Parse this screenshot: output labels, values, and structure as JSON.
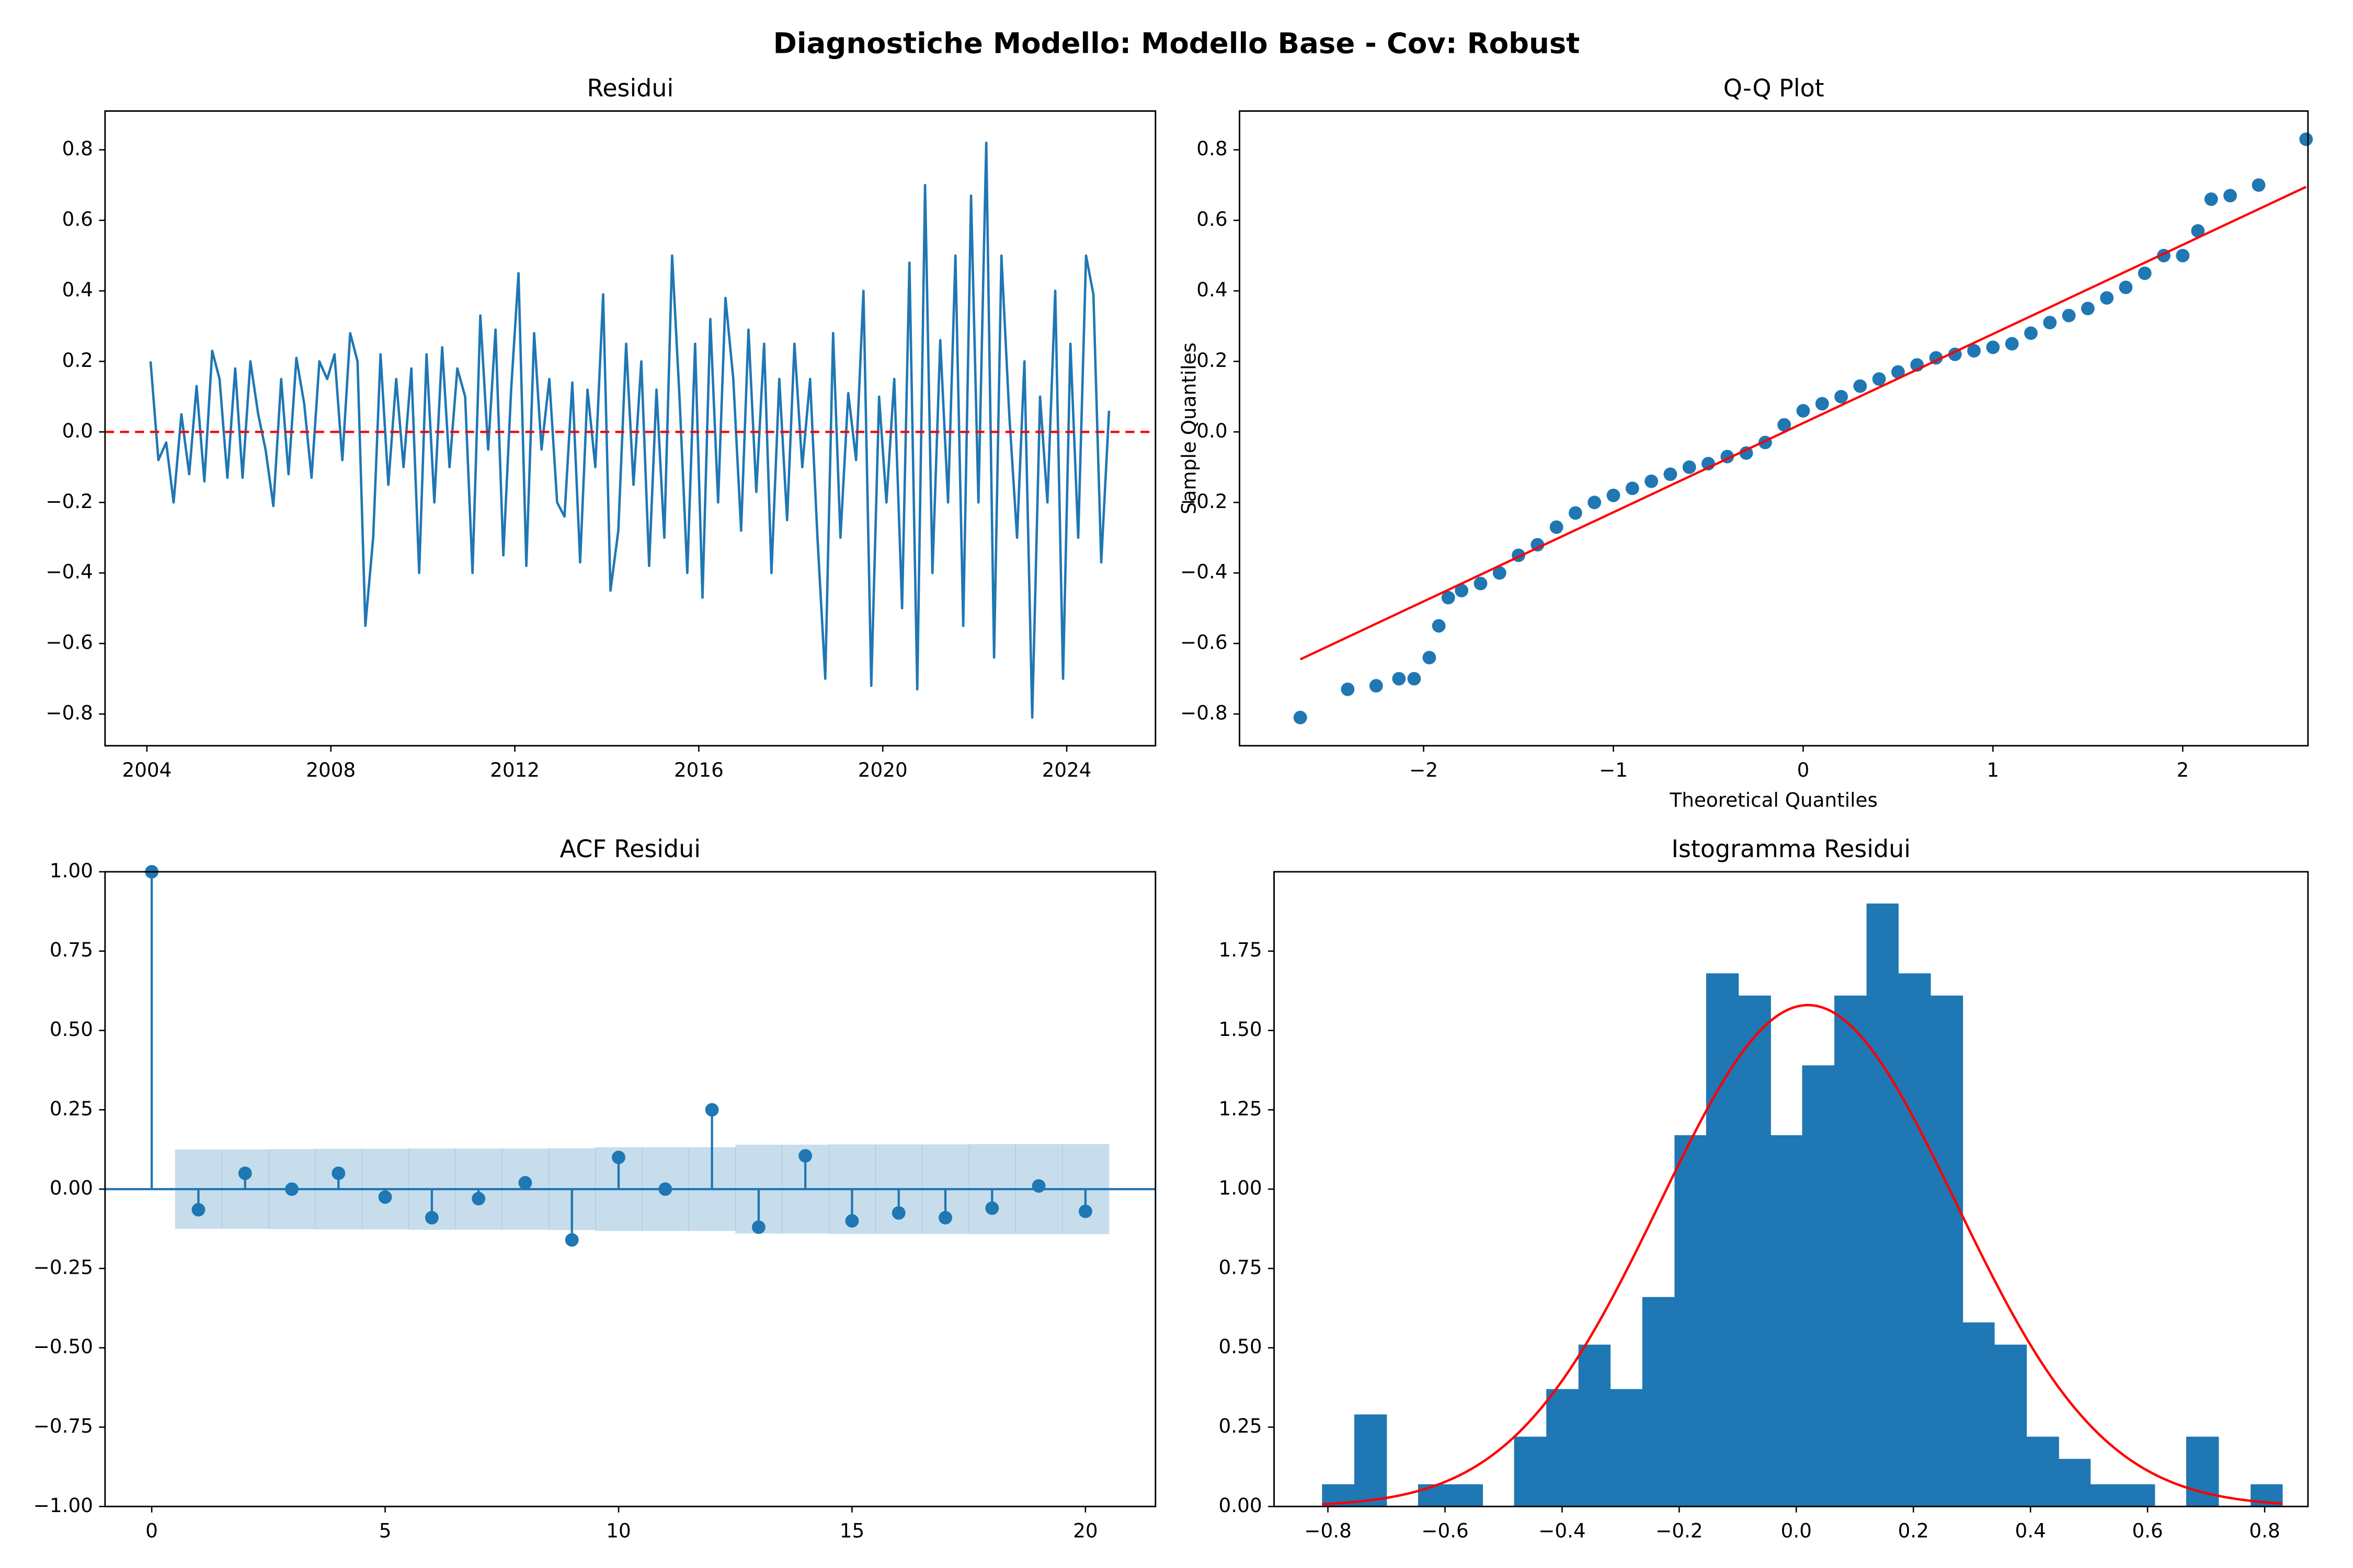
{
  "title": "Diagnostiche Modello: Modello Base - Cov: Robust",
  "chart_data": [
    {
      "type": "line",
      "title": "Residui",
      "color": "#1f77b4",
      "x": [
        2004.08,
        2004.25,
        2004.42,
        2004.58,
        2004.75,
        2004.92,
        2005.08,
        2005.25,
        2005.42,
        2005.58,
        2005.75,
        2005.92,
        2006.08,
        2006.25,
        2006.42,
        2006.58,
        2006.75,
        2006.92,
        2007.08,
        2007.25,
        2007.42,
        2007.58,
        2007.75,
        2007.92,
        2008.08,
        2008.25,
        2008.42,
        2008.58,
        2008.75,
        2008.92,
        2009.08,
        2009.25,
        2009.42,
        2009.58,
        2009.75,
        2009.92,
        2010.08,
        2010.25,
        2010.42,
        2010.58,
        2010.75,
        2010.92,
        2011.08,
        2011.25,
        2011.42,
        2011.58,
        2011.75,
        2011.92,
        2012.08,
        2012.25,
        2012.42,
        2012.58,
        2012.75,
        2012.92,
        2013.08,
        2013.25,
        2013.42,
        2013.58,
        2013.75,
        2013.92,
        2014.08,
        2014.25,
        2014.42,
        2014.58,
        2014.75,
        2014.92,
        2015.08,
        2015.25,
        2015.42,
        2015.58,
        2015.75,
        2015.92,
        2016.08,
        2016.25,
        2016.42,
        2016.58,
        2016.75,
        2016.92,
        2017.08,
        2017.25,
        2017.42,
        2017.58,
        2017.75,
        2017.92,
        2018.08,
        2018.25,
        2018.42,
        2018.58,
        2018.75,
        2018.92,
        2019.08,
        2019.25,
        2019.42,
        2019.58,
        2019.75,
        2019.92,
        2020.08,
        2020.25,
        2020.42,
        2020.58,
        2020.75,
        2020.92,
        2021.08,
        2021.25,
        2021.42,
        2021.58,
        2021.75,
        2021.92,
        2022.08,
        2022.25,
        2022.42,
        2022.58,
        2022.75,
        2022.92,
        2023.08,
        2023.25,
        2023.42,
        2023.58,
        2023.75,
        2023.92,
        2024.08,
        2024.25,
        2024.42,
        2024.58,
        2024.75,
        2024.92
      ],
      "values": [
        0.2,
        -0.08,
        -0.03,
        -0.2,
        0.05,
        -0.12,
        0.13,
        -0.14,
        0.23,
        0.15,
        -0.13,
        0.18,
        -0.13,
        0.2,
        0.05,
        -0.05,
        -0.21,
        0.15,
        -0.12,
        0.21,
        0.08,
        -0.13,
        0.2,
        0.15,
        0.22,
        -0.08,
        0.28,
        0.2,
        -0.55,
        -0.3,
        0.22,
        -0.15,
        0.15,
        -0.1,
        0.18,
        -0.4,
        0.22,
        -0.2,
        0.24,
        -0.1,
        0.18,
        0.1,
        -0.4,
        0.33,
        -0.05,
        0.29,
        -0.35,
        0.12,
        0.45,
        -0.38,
        0.28,
        -0.05,
        0.15,
        -0.2,
        -0.24,
        0.14,
        -0.37,
        0.12,
        -0.1,
        0.39,
        -0.45,
        -0.28,
        0.25,
        -0.15,
        0.2,
        -0.38,
        0.12,
        -0.3,
        0.5,
        0.1,
        -0.4,
        0.25,
        -0.47,
        0.32,
        -0.2,
        0.38,
        0.15,
        -0.28,
        0.29,
        -0.17,
        0.25,
        -0.4,
        0.15,
        -0.25,
        0.25,
        -0.1,
        0.15,
        -0.3,
        -0.7,
        0.28,
        -0.3,
        0.11,
        -0.08,
        0.4,
        -0.72,
        0.1,
        -0.2,
        0.15,
        -0.5,
        0.48,
        -0.73,
        0.7,
        -0.4,
        0.26,
        -0.2,
        0.5,
        -0.55,
        0.67,
        -0.2,
        0.82,
        -0.64,
        0.5,
        0.05,
        -0.3,
        0.2,
        -0.81,
        0.1,
        -0.2,
        0.4,
        -0.7,
        0.25,
        -0.3,
        0.5,
        0.39,
        -0.37,
        0.06
      ],
      "hline": {
        "value": 0,
        "color": "red",
        "dashed": true
      },
      "xlim": [
        2003.09,
        2025.93
      ],
      "xticks": [
        2004,
        2008,
        2012,
        2016,
        2020,
        2024
      ],
      "ylim": [
        -0.89,
        0.91
      ],
      "yticks": [
        {
          "value": -0.8,
          "label": "−0.8"
        },
        {
          "value": -0.6,
          "label": "−0.6"
        },
        {
          "value": -0.4,
          "label": "−0.4"
        },
        {
          "value": -0.2,
          "label": "−0.2"
        },
        {
          "value": 0,
          "label": "0.0"
        },
        0.2,
        0.4,
        0.6,
        0.8
      ]
    },
    {
      "type": "scatter",
      "title": "Q-Q Plot",
      "xlabel": "Theoretical Quantiles",
      "ylabel": "Sample Quantiles",
      "color": "#1f77b4",
      "x": [
        -2.65,
        -2.4,
        -2.25,
        -2.13,
        -2.05,
        -1.97,
        -1.92,
        -1.87,
        -1.8,
        -1.7,
        -1.6,
        -1.5,
        -1.4,
        -1.3,
        -1.2,
        -1.1,
        -1.0,
        -0.9,
        -0.8,
        -0.7,
        -0.6,
        -0.5,
        -0.4,
        -0.3,
        -0.2,
        -0.1,
        0,
        0.1,
        0.2,
        0.3,
        0.4,
        0.5,
        0.6,
        0.7,
        0.8,
        0.9,
        1.0,
        1.1,
        1.2,
        1.3,
        1.4,
        1.5,
        1.6,
        1.7,
        1.8,
        1.9,
        2.0,
        2.08,
        2.15,
        2.25,
        2.4,
        2.65
      ],
      "values": [
        -0.81,
        -0.73,
        -0.72,
        -0.7,
        -0.7,
        -0.64,
        -0.55,
        -0.47,
        -0.45,
        -0.43,
        -0.4,
        -0.35,
        -0.32,
        -0.27,
        -0.23,
        -0.2,
        -0.18,
        -0.16,
        -0.14,
        -0.12,
        -0.1,
        -0.09,
        -0.07,
        -0.06,
        -0.03,
        0.02,
        0.06,
        0.08,
        0.1,
        0.13,
        0.15,
        0.17,
        0.19,
        0.21,
        0.22,
        0.23,
        0.24,
        0.25,
        0.28,
        0.31,
        0.33,
        0.35,
        0.38,
        0.41,
        0.45,
        0.5,
        0.5,
        0.57,
        0.66,
        0.67,
        0.7,
        0.83
      ],
      "fit_line": {
        "x": [
          -2.65,
          2.65
        ],
        "values": [
          -0.645,
          0.695
        ],
        "color": "red"
      },
      "xlim": [
        -2.97,
        2.66
      ],
      "xticks": [
        {
          "value": -2,
          "label": "−2"
        },
        {
          "value": -1,
          "label": "−1"
        },
        0,
        1,
        2
      ],
      "ylim": [
        -0.89,
        0.91
      ],
      "yticks": [
        {
          "value": -0.8,
          "label": "−0.8"
        },
        {
          "value": -0.6,
          "label": "−0.6"
        },
        {
          "value": -0.4,
          "label": "−0.4"
        },
        {
          "value": -0.2,
          "label": "−0.2"
        },
        {
          "value": 0,
          "label": "0.0"
        },
        0.2,
        0.4,
        0.6,
        0.8
      ]
    },
    {
      "type": "acf",
      "title": "ACF Residui",
      "color": "#1f77b4",
      "x": [
        0,
        1,
        2,
        3,
        4,
        5,
        6,
        7,
        8,
        9,
        10,
        11,
        12,
        13,
        14,
        15,
        16,
        17,
        18,
        19,
        20
      ],
      "values": [
        1,
        -0.065,
        0.05,
        0,
        0.05,
        -0.025,
        -0.09,
        -0.03,
        0.02,
        -0.16,
        0.1,
        0,
        0.25,
        -0.12,
        0.105,
        -0.1,
        -0.075,
        -0.09,
        -0.06,
        0.01,
        -0.07
      ],
      "confint": [
        null,
        0.125,
        0.125,
        0.126,
        0.127,
        0.127,
        0.128,
        0.128,
        0.128,
        0.129,
        0.132,
        0.132,
        0.132,
        0.14,
        0.14,
        0.141,
        0.141,
        0.141,
        0.142,
        0.142,
        0.142
      ],
      "xlim": [
        -1.0,
        21.5
      ],
      "xticks": [
        0,
        5,
        10,
        15,
        20
      ],
      "ylim": [
        -1,
        1
      ],
      "yticks": [
        {
          "value": -1,
          "label": "−1.00"
        },
        {
          "value": -0.75,
          "label": "−0.75"
        },
        {
          "value": -0.5,
          "label": "−0.50"
        },
        {
          "value": -0.25,
          "label": "−0.25"
        },
        {
          "value": 0,
          "label": "0.00"
        },
        0.25,
        {
          "value": 0.5,
          "label": "0.50"
        },
        0.75,
        {
          "value": 1,
          "label": "1.00"
        }
      ]
    },
    {
      "type": "histogram",
      "title": "Istogramma Residui",
      "color": "#1f77b4",
      "bins": [
        -0.81,
        -0.755,
        -0.7,
        -0.646,
        -0.591,
        -0.536,
        -0.482,
        -0.427,
        -0.372,
        -0.318,
        -0.263,
        -0.208,
        -0.154,
        -0.099,
        -0.044,
        0.01,
        0.065,
        0.12,
        0.174,
        0.229,
        0.284,
        0.338,
        0.393,
        0.448,
        0.502,
        0.557,
        0.612,
        0.666,
        0.721,
        0.776,
        0.83
      ],
      "values": [
        0.07,
        0.29,
        0,
        0.07,
        0.07,
        0,
        0.22,
        0.37,
        0.51,
        0.37,
        0.66,
        1.17,
        1.68,
        1.61,
        1.17,
        1.39,
        1.61,
        1.9,
        1.68,
        1.61,
        0.58,
        0.51,
        0.22,
        0.15,
        0.07,
        0.07,
        0,
        0.22,
        0,
        0.07
      ],
      "density_curve": {
        "mean": 0.02,
        "std": 0.2525,
        "color": "red"
      },
      "xlim": [
        -0.892,
        0.874
      ],
      "xticks": [
        {
          "value": -0.8,
          "label": "−0.8"
        },
        {
          "value": -0.6,
          "label": "−0.6"
        },
        {
          "value": -0.4,
          "label": "−0.4"
        },
        {
          "value": -0.2,
          "label": "−0.2"
        },
        {
          "value": 0,
          "label": "0.0"
        },
        0.2,
        0.4,
        0.6,
        0.8
      ],
      "ylim": [
        0,
        2.0
      ],
      "yticks": [
        {
          "value": 0,
          "label": "0.00"
        },
        0.25,
        {
          "value": 0.5,
          "label": "0.50"
        },
        0.75,
        {
          "value": 1,
          "label": "1.00"
        },
        1.25,
        {
          "value": 1.5,
          "label": "1.50"
        },
        1.75
      ]
    }
  ]
}
